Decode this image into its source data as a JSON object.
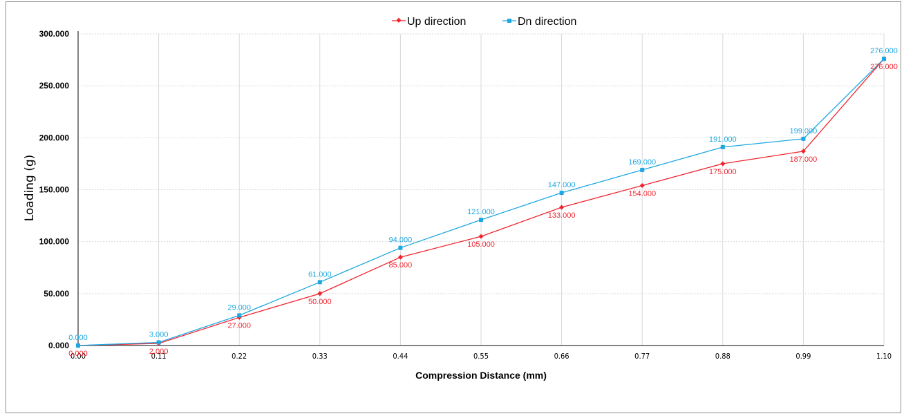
{
  "chart_data": {
    "type": "line",
    "title": "",
    "xlabel": "Compression Distance (mm)",
    "ylabel": "Loading (g)",
    "categories": [
      "0.00",
      "0.11",
      "0.22",
      "0.33",
      "0.44",
      "0.55",
      "0.66",
      "0.77",
      "0.88",
      "0.99",
      "1.10"
    ],
    "x_tick_labels": [
      "0.00",
      "0.11",
      "0.22",
      "0.33",
      "0.44",
      "0.55",
      "0.66",
      "0.77",
      "0.88",
      "0.99",
      "1.10"
    ],
    "y_tick_labels": [
      "0.000",
      "50.000",
      "100.000",
      "150.000",
      "200.000",
      "250.000",
      "300.000"
    ],
    "ylim": [
      0,
      300
    ],
    "grid": true,
    "legend_position": "top-center",
    "series": [
      {
        "name": "Up direction",
        "color": "#f0232d",
        "marker": "diamond",
        "values": [
          0,
          2,
          27,
          50,
          85,
          105,
          133,
          154,
          175,
          187,
          276
        ],
        "labels": [
          "0.000",
          "2.000",
          "27.000",
          "50.000",
          "85.000",
          "105.000",
          "133.000",
          "154.000",
          "175.000",
          "187.000",
          "276.000"
        ]
      },
      {
        "name": "Dn direction",
        "color": "#1ea7e1",
        "marker": "square",
        "values": [
          0,
          3,
          29,
          61,
          94,
          121,
          147,
          169,
          191,
          199,
          276
        ],
        "labels": [
          "0.000",
          "3.000",
          "29.000",
          "61.000",
          "94.000",
          "121.000",
          "147.000",
          "169.000",
          "191.000",
          "199.000",
          "276.000"
        ]
      }
    ]
  }
}
